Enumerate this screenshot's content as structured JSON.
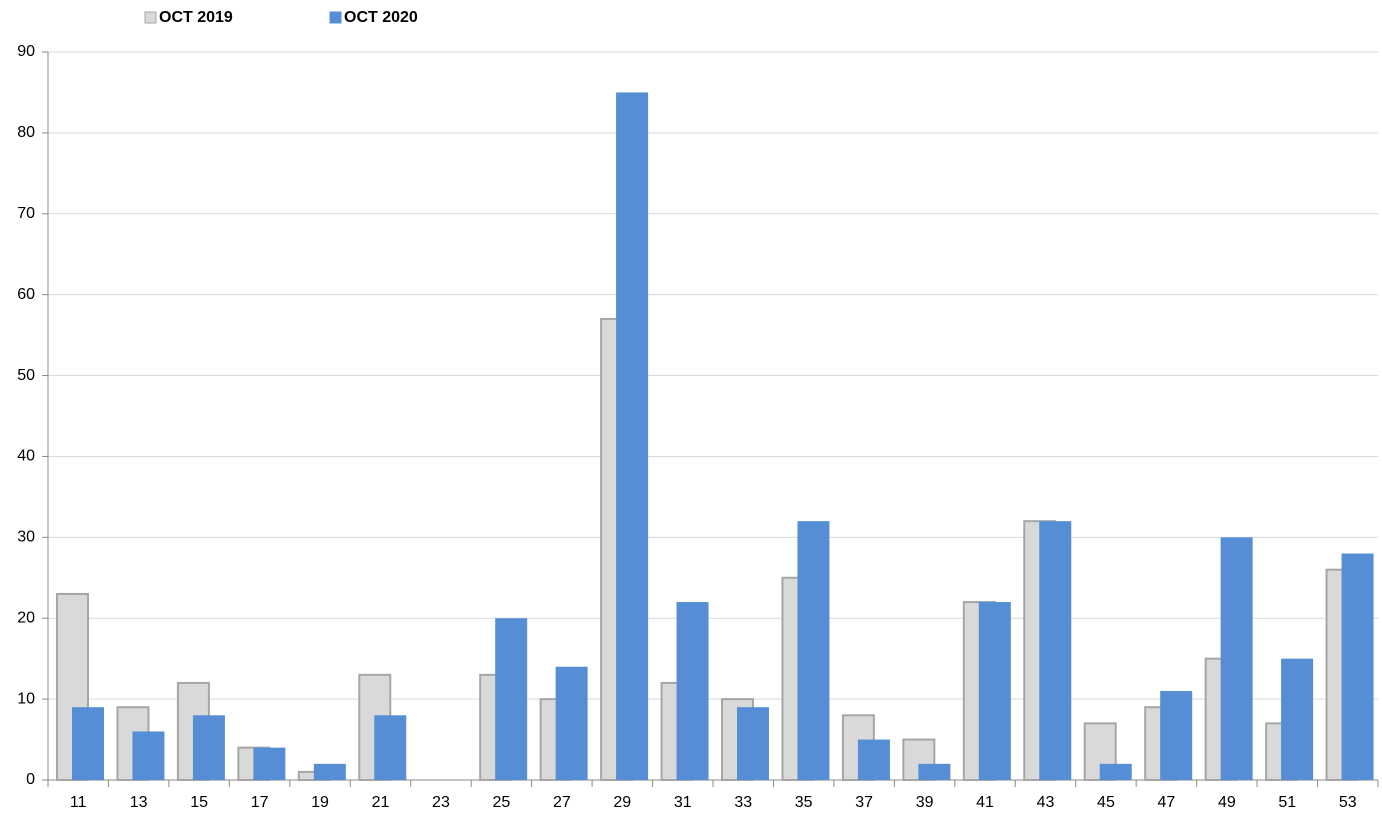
{
  "chart_data": {
    "type": "bar",
    "categories": [
      "11",
      "13",
      "15",
      "17",
      "19",
      "21",
      "23",
      "25",
      "27",
      "29",
      "31",
      "33",
      "35",
      "37",
      "39",
      "41",
      "43",
      "45",
      "47",
      "49",
      "51",
      "53"
    ],
    "series": [
      {
        "name": "OCT 2019",
        "color": "#d9d9d9",
        "values": [
          23,
          9,
          12,
          4,
          1,
          13,
          0,
          13,
          10,
          57,
          12,
          10,
          25,
          8,
          5,
          22,
          32,
          7,
          9,
          15,
          7,
          26
        ]
      },
      {
        "name": "OCT 2020",
        "color": "#558ed5",
        "values": [
          9,
          6,
          8,
          4,
          2,
          8,
          0,
          20,
          14,
          85,
          22,
          9,
          32,
          5,
          2,
          22,
          32,
          2,
          11,
          30,
          15,
          28
        ]
      }
    ],
    "ylim": [
      0,
      90
    ],
    "yticks": [
      0,
      10,
      20,
      30,
      40,
      50,
      60,
      70,
      80,
      90
    ],
    "grid": true,
    "legend": "top-left"
  }
}
